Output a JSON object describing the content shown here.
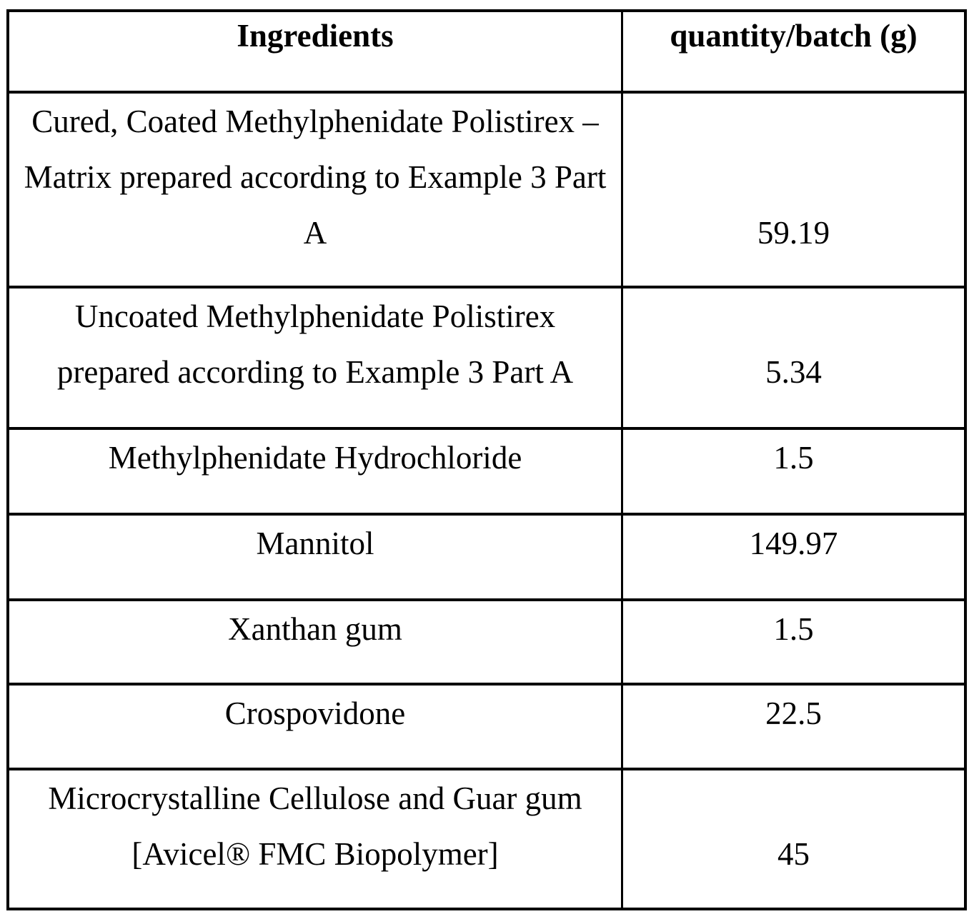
{
  "table": {
    "headers": {
      "ingredients": "Ingredients",
      "quantity": "quantity/batch (g)"
    },
    "rows": [
      {
        "lines": [
          "Cured, Coated Methylphenidate Polistirex –",
          "Matrix prepared according to Example 3 Part",
          "A"
        ],
        "quantity": "59.19"
      },
      {
        "lines": [
          "Uncoated Methylphenidate Polistirex",
          "prepared according to Example 3 Part A"
        ],
        "quantity": "5.34"
      },
      {
        "lines": [
          "Methylphenidate Hydrochloride"
        ],
        "quantity": "1.5"
      },
      {
        "lines": [
          "Mannitol"
        ],
        "quantity": "149.97"
      },
      {
        "lines": [
          "Xanthan gum"
        ],
        "quantity": "1.5"
      },
      {
        "lines": [
          "Crospovidone"
        ],
        "quantity": "22.5"
      },
      {
        "lines": [
          "Microcrystalline Cellulose and Guar gum",
          "[Avicel® FMC Biopolymer]"
        ],
        "quantity": "45"
      }
    ]
  }
}
